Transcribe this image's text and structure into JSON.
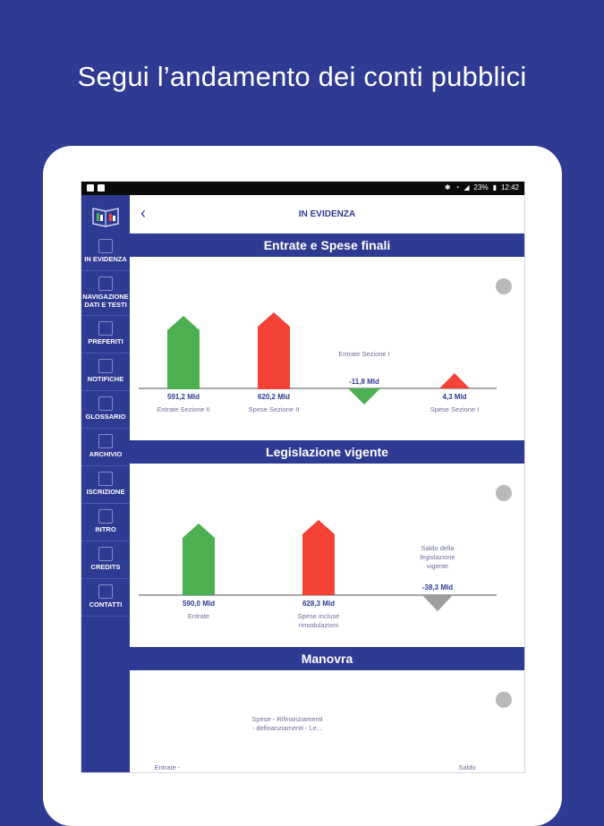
{
  "headline": "Segui l’andamento dei conti pubblici",
  "statusbar": {
    "battery": "23%",
    "time": "12:42"
  },
  "topbar": {
    "back_symbol": "‹",
    "title": "IN EVIDENZA"
  },
  "sidebar": {
    "items": [
      {
        "label": "IN EVIDENZA",
        "icon": "home-icon"
      },
      {
        "label": "NAVIGAZIONE DATI E TESTI",
        "icon": "document-icon"
      },
      {
        "label": "PREFERITI",
        "icon": "star-icon"
      },
      {
        "label": "NOTIFICHE",
        "icon": "bell-icon"
      },
      {
        "label": "GLOSSARIO",
        "icon": "book-icon"
      },
      {
        "label": "ARCHIVIO",
        "icon": "archive-icon"
      },
      {
        "label": "ISCRIZIONE",
        "icon": "mail-icon"
      },
      {
        "label": "INTRO",
        "icon": "video-icon"
      },
      {
        "label": "CREDITS",
        "icon": "copyright-icon"
      },
      {
        "label": "CONTATTI",
        "icon": "contact-icon"
      }
    ]
  },
  "sections": {
    "s1": {
      "title": "Entrate e Spese finali",
      "bars": [
        {
          "value": "591,2 Mld",
          "label": "Entrate Sezione II",
          "amount": 591.2,
          "color": "#4caf50"
        },
        {
          "value": "620,2 Mld",
          "label": "Spese Sezione II",
          "amount": 620.2,
          "color": "#f44336"
        },
        {
          "value": "-11,8 Mld",
          "label": "Entrate Sezione I",
          "amount": -11.8,
          "color": "#4caf50"
        },
        {
          "value": "4,3 Mld",
          "label": "Spese Sezione I",
          "amount": 4.3,
          "color": "#f44336"
        }
      ]
    },
    "s2": {
      "title": "Legislazione vigente",
      "bars": [
        {
          "value": "590,0 Mld",
          "label": "Entrate",
          "amount": 590.0,
          "color": "#4caf50"
        },
        {
          "value": "628,3 Mld",
          "label": "Spese incluse rimodulazioni",
          "amount": 628.3,
          "color": "#f44336"
        },
        {
          "value": "-38,3 Mld",
          "label": "Saldo della legislazione vigente",
          "amount": -38.3,
          "color": "#9e9e9e"
        }
      ]
    },
    "s3": {
      "title": "Manovra",
      "labels": [
        "Spese - Rifinanziamenti - definanziamenti - Le...",
        "Entrate -",
        "Saldo"
      ]
    }
  }
}
